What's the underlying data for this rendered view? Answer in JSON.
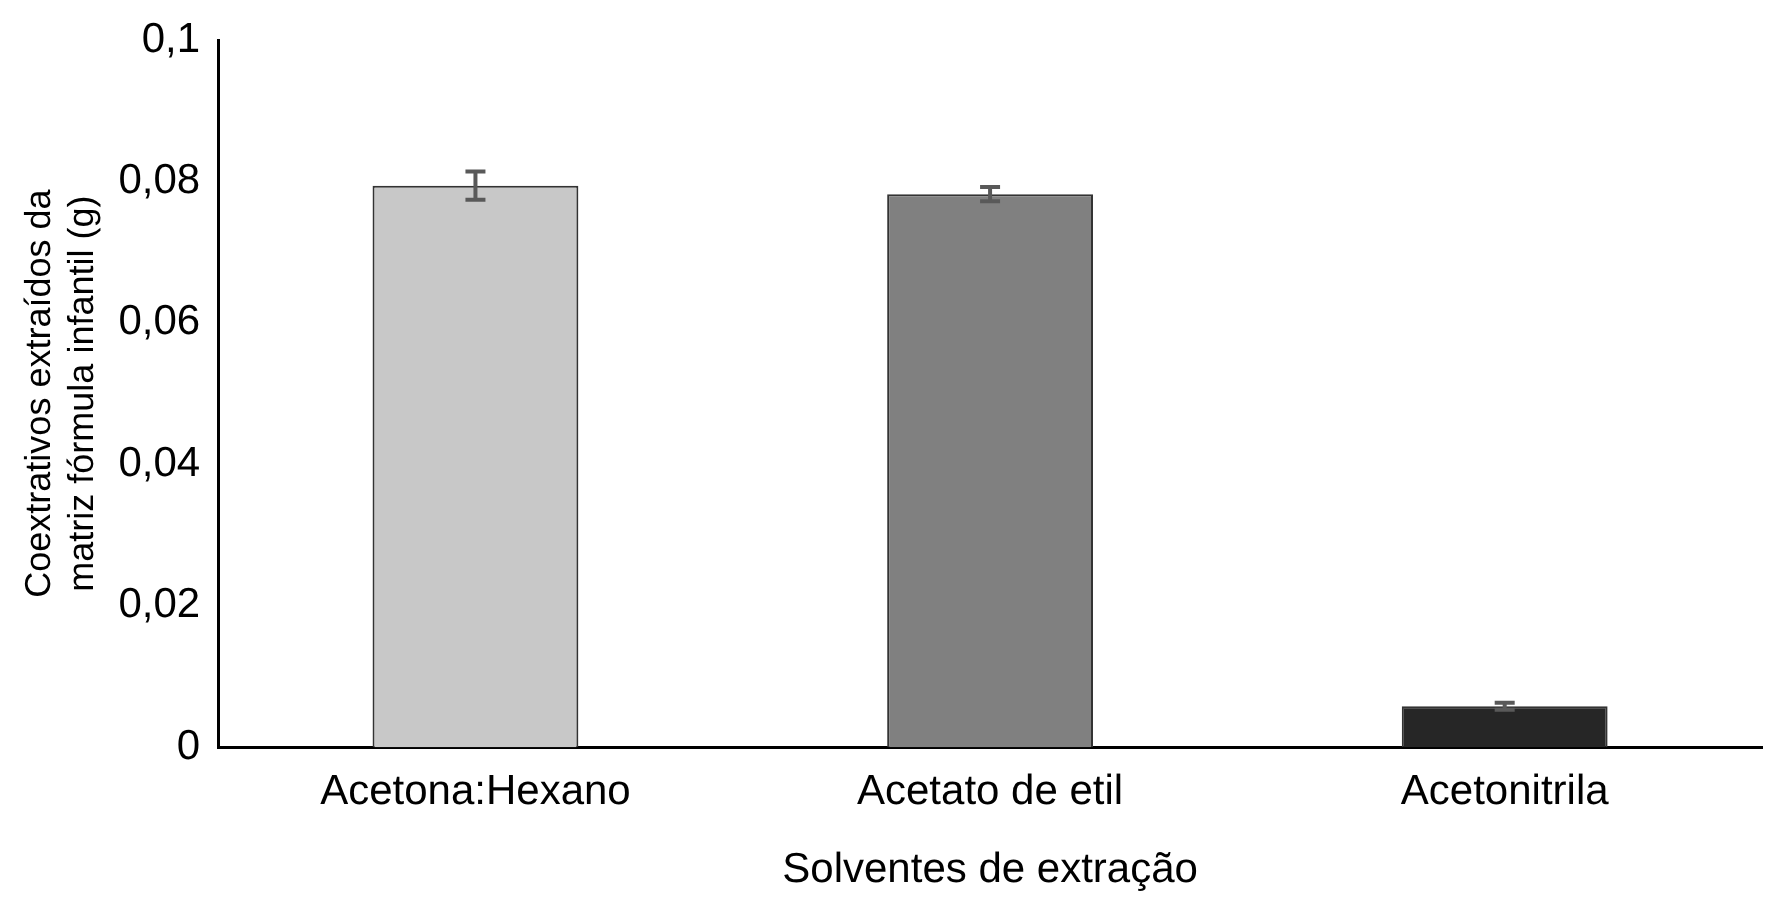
{
  "chart_data": {
    "type": "bar",
    "xlabel": "Solventes de extração",
    "ylabel": "Coextrativos extraídos da matriz fórmula infantil (g)",
    "categories": [
      "Acetona:Hexano",
      "Acetato de etil",
      "Acetonitrila"
    ],
    "values": [
      0.0794,
      0.0782,
      0.0058
    ],
    "errors": [
      0.002,
      0.001,
      0.0005
    ],
    "colors": [
      "#c8c8c8",
      "#808080",
      "#262626"
    ],
    "ylim": [
      0,
      0.1
    ],
    "yticks": [
      {
        "value": 0,
        "label": "0"
      },
      {
        "value": 0.02,
        "label": "0,02"
      },
      {
        "value": 0.04,
        "label": "0,04"
      },
      {
        "value": 0.06,
        "label": "0,06"
      },
      {
        "value": 0.08,
        "label": "0,08"
      },
      {
        "value": 0.1,
        "label": "0,1"
      }
    ],
    "grid": false,
    "legend": false
  }
}
